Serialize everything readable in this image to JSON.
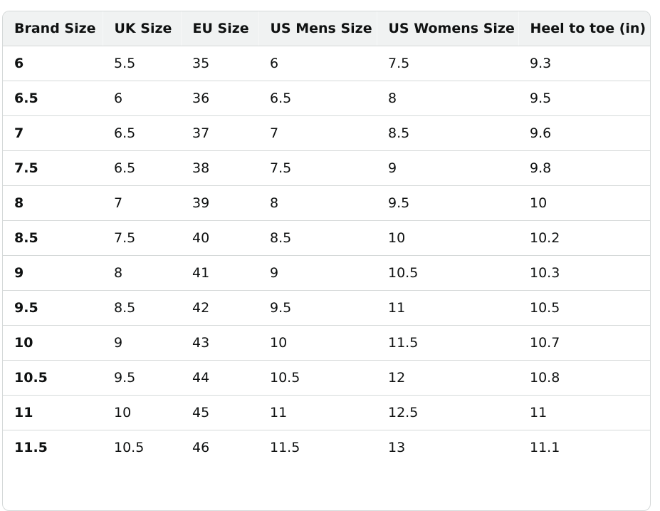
{
  "table": {
    "headers": [
      "Brand Size",
      "UK Size",
      "EU Size",
      "US Mens Size",
      "US Womens Size",
      "Heel to toe (in)"
    ],
    "rows": [
      [
        "6",
        "5.5",
        "35",
        "6",
        "7.5",
        "9.3"
      ],
      [
        "6.5",
        "6",
        "36",
        "6.5",
        "8",
        "9.5"
      ],
      [
        "7",
        "6.5",
        "37",
        "7",
        "8.5",
        "9.6"
      ],
      [
        "7.5",
        "6.5",
        "38",
        "7.5",
        "9",
        "9.8"
      ],
      [
        "8",
        "7",
        "39",
        "8",
        "9.5",
        "10"
      ],
      [
        "8.5",
        "7.5",
        "40",
        "8.5",
        "10",
        "10.2"
      ],
      [
        "9",
        "8",
        "41",
        "9",
        "10.5",
        "10.3"
      ],
      [
        "9.5",
        "8.5",
        "42",
        "9.5",
        "11",
        "10.5"
      ],
      [
        "10",
        "9",
        "43",
        "10",
        "11.5",
        "10.7"
      ],
      [
        "10.5",
        "9.5",
        "44",
        "10.5",
        "12",
        "10.8"
      ],
      [
        "11",
        "10",
        "45",
        "11",
        "12.5",
        "11"
      ],
      [
        "11.5",
        "10.5",
        "46",
        "11.5",
        "13",
        "11.1"
      ]
    ]
  },
  "colors": {
    "header_bg": "#f0f2f2",
    "border": "#d5d9d9",
    "text": "#0f1111"
  }
}
